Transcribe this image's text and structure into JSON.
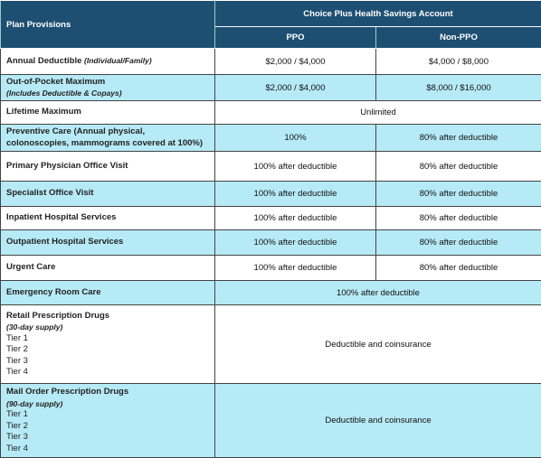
{
  "table": {
    "header": {
      "provisions": "Plan Provisions",
      "plan": "Choice Plus Health Savings Account",
      "columns": [
        "PPO",
        "Non-PPO"
      ]
    },
    "rows": [
      {
        "label": "Annual Deductible",
        "note": "(Individual/Family)",
        "values": [
          "$2,000 / $4,000",
          "$4,000 / $8,000"
        ]
      },
      {
        "label": "Out-of-Pocket Maximum",
        "note": "(Includes Deductible & Copays)",
        "values": [
          "$2,000 / $4,000",
          "$8,000 / $16,000"
        ]
      },
      {
        "label": "Lifetime Maximum",
        "values": [
          "Unlimited"
        ]
      },
      {
        "label": "Preventive Care (Annual physical, colonoscopies, mammograms covered at 100%)",
        "values": [
          "100%",
          "80% after deductible"
        ]
      },
      {
        "label": "Primary Physician Office Visit",
        "values": [
          "100% after deductible",
          "80% after deductible"
        ]
      },
      {
        "label": "Specialist Office Visit",
        "values": [
          "100% after deductible",
          "80% after deductible"
        ]
      },
      {
        "label": "Inpatient Hospital Services",
        "values": [
          "100% after deductible",
          "80% after deductible"
        ]
      },
      {
        "label": "Outpatient Hospital Services",
        "values": [
          "100% after deductible",
          "80% after deductible"
        ]
      },
      {
        "label": "Urgent Care",
        "values": [
          "100% after deductible",
          "80% after deductible"
        ]
      },
      {
        "label": "Emergency Room Care",
        "values": [
          "100% after deductible"
        ]
      },
      {
        "label": "Retail Prescription Drugs",
        "note": "(30-day supply)",
        "tiers": [
          "Tier 1",
          "Tier 2",
          "Tier 3",
          "Tier 4"
        ],
        "values": [
          "Deductible and coinsurance"
        ]
      },
      {
        "label": "Mail Order Prescription Drugs",
        "note": "(90-day supply)",
        "tiers": [
          "Tier 1",
          "Tier 2",
          "Tier 3",
          "Tier 4"
        ],
        "values": [
          "Deductible and coinsurance"
        ]
      }
    ]
  }
}
